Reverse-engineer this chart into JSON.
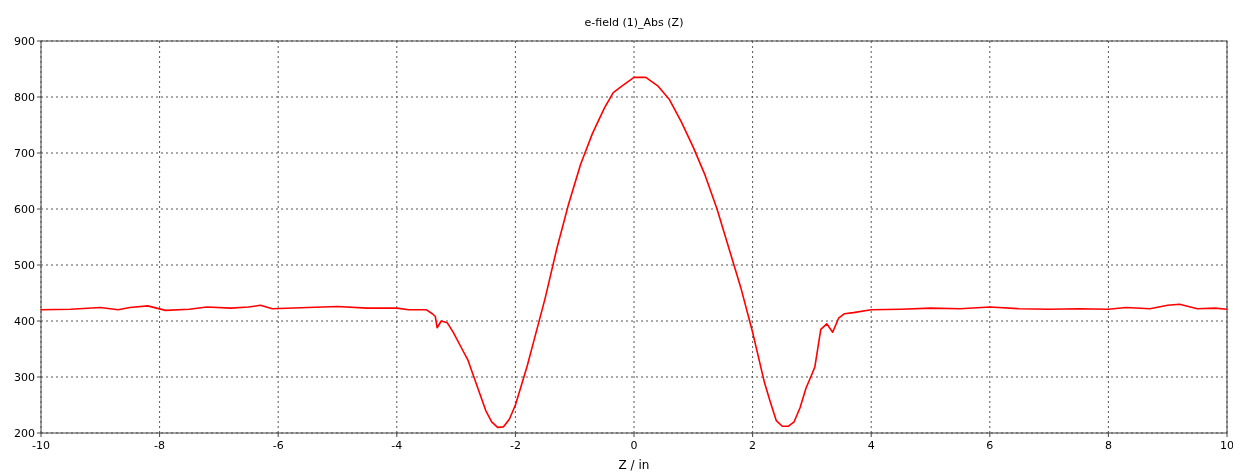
{
  "chart_data": {
    "type": "line",
    "title": "e-field (1)_Abs (Z)",
    "xlabel": "Z / in",
    "xlim": [
      -10,
      10
    ],
    "xticks": [
      -10,
      -8,
      -6,
      -4,
      -2,
      0,
      2,
      4,
      6,
      8,
      10
    ],
    "ylim": [
      200,
      900
    ],
    "yticks": [
      200,
      300,
      400,
      500,
      600,
      700,
      800,
      900
    ],
    "grid": true,
    "line_style": "solid",
    "marker": "none",
    "series": [
      {
        "color": "#ff0000",
        "x": [
          -10,
          -9.5,
          -9,
          -8.7,
          -8.5,
          -8.2,
          -7.9,
          -7.5,
          -7.2,
          -6.8,
          -6.5,
          -6.3,
          -6.1,
          -5.5,
          -5,
          -4.5,
          -4,
          -3.8,
          -3.5,
          -3.4,
          -3.35,
          -3.32,
          -3.25,
          -3.15,
          -3.05,
          -2.9,
          -2.8,
          -2.7,
          -2.6,
          -2.5,
          -2.4,
          -2.3,
          -2.2,
          -2.1,
          -2,
          -1.9,
          -1.8,
          -1.7,
          -1.5,
          -1.3,
          -1.1,
          -0.9,
          -0.7,
          -0.5,
          -0.35,
          -0.2,
          0,
          0.2,
          0.4,
          0.6,
          0.8,
          1,
          1.2,
          1.4,
          1.6,
          1.8,
          2,
          2.2,
          2.3,
          2.4,
          2.5,
          2.6,
          2.7,
          2.8,
          2.9,
          3,
          3.05,
          3.15,
          3.25,
          3.35,
          3.45,
          3.55,
          3.7,
          4,
          4.5,
          5,
          5.5,
          6,
          6.5,
          7,
          7.5,
          8,
          8.3,
          8.7,
          9,
          9.2,
          9.5,
          9.8,
          10
        ],
        "values": [
          420,
          421,
          424,
          420,
          424,
          427,
          419,
          421,
          425,
          423,
          425,
          428,
          422,
          424,
          426,
          423,
          423,
          420,
          420,
          413,
          408,
          388,
          400,
          397,
          380,
          350,
          330,
          300,
          270,
          240,
          220,
          210,
          211,
          225,
          250,
          285,
          320,
          360,
          440,
          530,
          610,
          680,
          735,
          780,
          808,
          820,
          835,
          835,
          820,
          795,
          755,
          710,
          660,
          600,
          530,
          460,
          380,
          290,
          255,
          222,
          212,
          212,
          220,
          245,
          280,
          305,
          318,
          385,
          395,
          380,
          405,
          413,
          415,
          420,
          421,
          423,
          422,
          425,
          422,
          421,
          422,
          421,
          424,
          422,
          428,
          430,
          422,
          423,
          421
        ]
      }
    ]
  }
}
